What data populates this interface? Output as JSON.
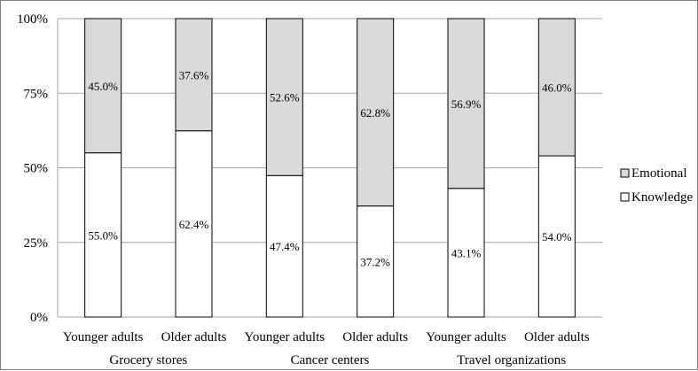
{
  "chart_data": {
    "type": "bar",
    "stacked": true,
    "percent": true,
    "ylim": [
      0,
      100
    ],
    "yticks": [
      "0%",
      "25%",
      "50%",
      "75%",
      "100%"
    ],
    "ytick_values": [
      0,
      25,
      50,
      75,
      100
    ],
    "grid": true,
    "legend_position": "right",
    "categories": [
      "Younger adults",
      "Older adults",
      "Younger adults",
      "Older adults",
      "Younger adults",
      "Older adults"
    ],
    "groups": [
      "Grocery stores",
      "Cancer centers",
      "Travel organizations"
    ],
    "series": [
      {
        "name": "Knowledge",
        "color": "#ffffff",
        "values": [
          55.0,
          62.4,
          47.4,
          37.2,
          43.1,
          54.0
        ],
        "labels": [
          "55.0%",
          "62.4%",
          "47.4%",
          "37.2%",
          "43.1%",
          "54.0%"
        ]
      },
      {
        "name": "Emotional",
        "color": "#d9d9d9",
        "values": [
          45.0,
          37.6,
          52.6,
          62.8,
          56.9,
          46.0
        ],
        "labels": [
          "45.0%",
          "37.6%",
          "52.6%",
          "62.8%",
          "56.9%",
          "46.0%"
        ]
      }
    ],
    "legend": [
      "Emotional",
      "Knowledge"
    ]
  }
}
